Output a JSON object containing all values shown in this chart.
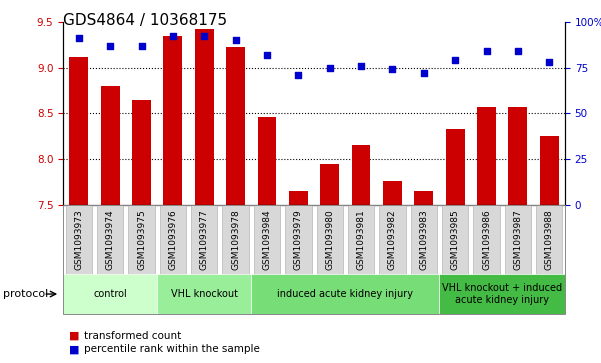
{
  "title": "GDS4864 / 10368175",
  "samples": [
    "GSM1093973",
    "GSM1093974",
    "GSM1093975",
    "GSM1093976",
    "GSM1093977",
    "GSM1093978",
    "GSM1093984",
    "GSM1093979",
    "GSM1093980",
    "GSM1093981",
    "GSM1093982",
    "GSM1093983",
    "GSM1093985",
    "GSM1093986",
    "GSM1093987",
    "GSM1093988"
  ],
  "bar_values": [
    9.12,
    8.8,
    8.65,
    9.35,
    9.42,
    9.22,
    8.46,
    7.65,
    7.95,
    8.16,
    7.76,
    7.65,
    8.33,
    8.57,
    8.57,
    8.25
  ],
  "dot_values": [
    91,
    87,
    87,
    92,
    92,
    90,
    82,
    71,
    75,
    76,
    74,
    72,
    79,
    84,
    84,
    78
  ],
  "ylim_left": [
    7.5,
    9.5
  ],
  "ylim_right": [
    0,
    100
  ],
  "yticks_left": [
    7.5,
    8.0,
    8.5,
    9.0,
    9.5
  ],
  "yticks_right": [
    0,
    25,
    50,
    75,
    100
  ],
  "grid_lines": [
    8.0,
    8.5,
    9.0
  ],
  "bar_color": "#cc0000",
  "dot_color": "#0000cc",
  "bar_bottom": 7.5,
  "groups": [
    {
      "label": "control",
      "start": 0,
      "end": 3,
      "color": "#ccffcc"
    },
    {
      "label": "VHL knockout",
      "start": 3,
      "end": 6,
      "color": "#99ee99"
    },
    {
      "label": "induced acute kidney injury",
      "start": 6,
      "end": 12,
      "color": "#77dd77"
    },
    {
      "label": "VHL knockout + induced\nacute kidney injury",
      "start": 12,
      "end": 16,
      "color": "#44bb44"
    }
  ],
  "protocol_label": "protocol",
  "legend_items": [
    {
      "label": "transformed count",
      "color": "#cc0000"
    },
    {
      "label": "percentile rank within the sample",
      "color": "#0000cc"
    }
  ],
  "title_fontsize": 11,
  "tick_fontsize": 7.5,
  "label_fontsize": 8
}
